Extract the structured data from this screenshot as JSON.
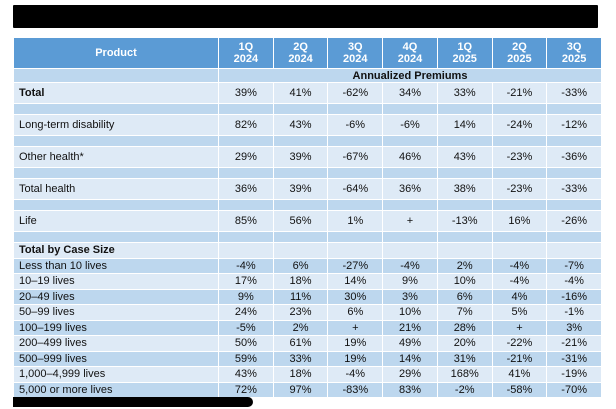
{
  "colors": {
    "header_bg": "#5B9BD5",
    "row_light": "#DEEAF6",
    "row_medium": "#BDD7EE",
    "header_text": "#FFFFFF",
    "body_text": "#111111",
    "redaction": "#000000",
    "page_bg": "#FFFFFF"
  },
  "redactions": {
    "title_bar": "blacked-out title text",
    "footnote_bar": "blacked-out footnote text"
  },
  "chart_data": {
    "type": "table",
    "banner": "Annualized Premiums",
    "header": {
      "product_label": "Product",
      "quarters": [
        {
          "q": "1Q",
          "year": "2024"
        },
        {
          "q": "2Q",
          "year": "2024"
        },
        {
          "q": "3Q",
          "year": "2024"
        },
        {
          "q": "4Q",
          "year": "2024"
        },
        {
          "q": "1Q",
          "year": "2025"
        },
        {
          "q": "2Q",
          "year": "2025"
        },
        {
          "q": "3Q",
          "year": "2025"
        }
      ]
    },
    "product_rows": [
      {
        "label": "Total",
        "bold": true,
        "values": [
          "39%",
          "41%",
          "-62%",
          "34%",
          "33%",
          "-21%",
          "-33%"
        ]
      },
      {
        "label": "Long-term disability",
        "bold": false,
        "values": [
          "82%",
          "43%",
          "-6%",
          "-6%",
          "14%",
          "-24%",
          "-12%"
        ]
      },
      {
        "label": "Other health*",
        "bold": false,
        "values": [
          "29%",
          "39%",
          "-67%",
          "46%",
          "43%",
          "-23%",
          "-36%"
        ]
      },
      {
        "label": "Total health",
        "bold": false,
        "values": [
          "36%",
          "39%",
          "-64%",
          "36%",
          "38%",
          "-23%",
          "-33%"
        ]
      },
      {
        "label": "Life",
        "bold": false,
        "values": [
          "85%",
          "56%",
          "1%",
          "+",
          "-13%",
          "16%",
          "-26%"
        ]
      }
    ],
    "case_size_header": "Total by Case Size",
    "case_size_rows": [
      {
        "label": "Less than 10 lives",
        "values": [
          "-4%",
          "6%",
          "-27%",
          "-4%",
          "2%",
          "-4%",
          "-7%"
        ]
      },
      {
        "label": "10–19 lives",
        "values": [
          "17%",
          "18%",
          "14%",
          "9%",
          "10%",
          "-4%",
          "-4%"
        ]
      },
      {
        "label": "20–49 lives",
        "values": [
          "9%",
          "11%",
          "30%",
          "3%",
          "6%",
          "4%",
          "-16%"
        ]
      },
      {
        "label": "50–99 lives",
        "values": [
          "24%",
          "23%",
          "6%",
          "10%",
          "7%",
          "5%",
          "-1%"
        ]
      },
      {
        "label": "100–199 lives",
        "values": [
          "-5%",
          "2%",
          "+",
          "21%",
          "28%",
          "+",
          "3%"
        ]
      },
      {
        "label": "200–499 lives",
        "values": [
          "50%",
          "61%",
          "19%",
          "49%",
          "20%",
          "-22%",
          "-21%"
        ]
      },
      {
        "label": "500–999 lives",
        "values": [
          "59%",
          "33%",
          "19%",
          "14%",
          "31%",
          "-21%",
          "-31%"
        ]
      },
      {
        "label": "1,000–4,999 lives",
        "values": [
          "43%",
          "18%",
          "-4%",
          "29%",
          "168%",
          "41%",
          "-19%"
        ]
      },
      {
        "label": "5,000 or more lives",
        "values": [
          "72%",
          "97%",
          "-83%",
          "83%",
          "-2%",
          "-58%",
          "-70%"
        ]
      }
    ]
  }
}
